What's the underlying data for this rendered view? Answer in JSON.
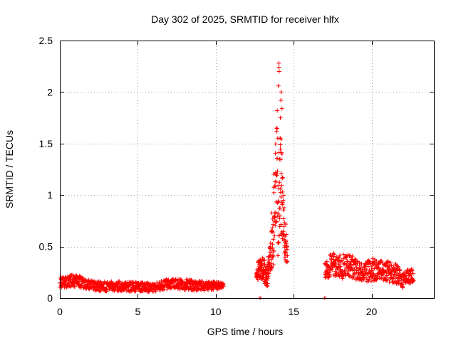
{
  "chart_data": {
    "type": "scatter",
    "title": "Day 302 of 2025, SRMTID for receiver hlfx",
    "xlabel": "GPS time / hours",
    "ylabel": "SRMTID / TECUs",
    "xlim": [
      0,
      24
    ],
    "ylim": [
      0,
      2.5
    ],
    "x_ticks": [
      0,
      5,
      10,
      15,
      20
    ],
    "x_tick_labels": [
      "0",
      "5",
      "10",
      "15",
      "20"
    ],
    "y_ticks": [
      0,
      0.5,
      1,
      1.5,
      2,
      2.5
    ],
    "y_tick_labels": [
      "0",
      "0.5",
      "1",
      "1.5",
      "2",
      "2.5"
    ],
    "grid": true,
    "marker": "+",
    "marker_color": "#ff0000",
    "series": [
      {
        "name": "hlfx",
        "segments": [
          {
            "x": [
              0.0,
              1.0,
              2.0,
              3.0,
              4.0,
              5.0,
              6.0,
              7.0,
              8.0,
              9.0,
              10.0,
              10.5
            ],
            "y": [
              0.15,
              0.17,
              0.12,
              0.11,
              0.12,
              0.11,
              0.1,
              0.14,
              0.13,
              0.12,
              0.12,
              0.12
            ],
            "spread": [
              0.05,
              0.06,
              0.05,
              0.05,
              0.05,
              0.05,
              0.04,
              0.05,
              0.05,
              0.05,
              0.04,
              0.03
            ],
            "count": 800
          },
          {
            "x": [
              12.6,
              13.0,
              13.3,
              13.5,
              13.7,
              13.9,
              14.0,
              14.1,
              14.2,
              14.3,
              14.5,
              14.6
            ],
            "y": [
              0.25,
              0.3,
              0.2,
              0.4,
              0.8,
              1.2,
              0.9,
              1.3,
              1.1,
              0.9,
              0.5,
              0.4
            ],
            "spread": [
              0.08,
              0.12,
              0.1,
              0.15,
              0.5,
              0.6,
              0.6,
              0.6,
              0.5,
              0.4,
              0.2,
              0.05
            ],
            "count": 260
          },
          {
            "x": [
              17.0,
              17.5,
              18.0,
              18.5,
              19.0,
              19.5,
              20.0,
              20.5,
              21.0,
              21.5,
              22.0,
              22.5,
              22.7
            ],
            "y": [
              0.28,
              0.32,
              0.3,
              0.32,
              0.28,
              0.24,
              0.28,
              0.27,
              0.26,
              0.24,
              0.18,
              0.22,
              0.22
            ],
            "spread": [
              0.1,
              0.12,
              0.12,
              0.12,
              0.1,
              0.08,
              0.12,
              0.1,
              0.1,
              0.1,
              0.08,
              0.08,
              0.06
            ],
            "count": 480
          }
        ],
        "extra_points": {
          "x": [
            14.05,
            14.06,
            14.07,
            14.02,
            13.95,
            14.2,
            14.18,
            14.25,
            14.15,
            13.85,
            12.85,
            17.0
          ],
          "y": [
            2.28,
            2.24,
            2.2,
            2.06,
            1.82,
            2.0,
            1.92,
            1.84,
            1.75,
            1.22,
            0.0,
            0.0
          ]
        }
      }
    ]
  }
}
